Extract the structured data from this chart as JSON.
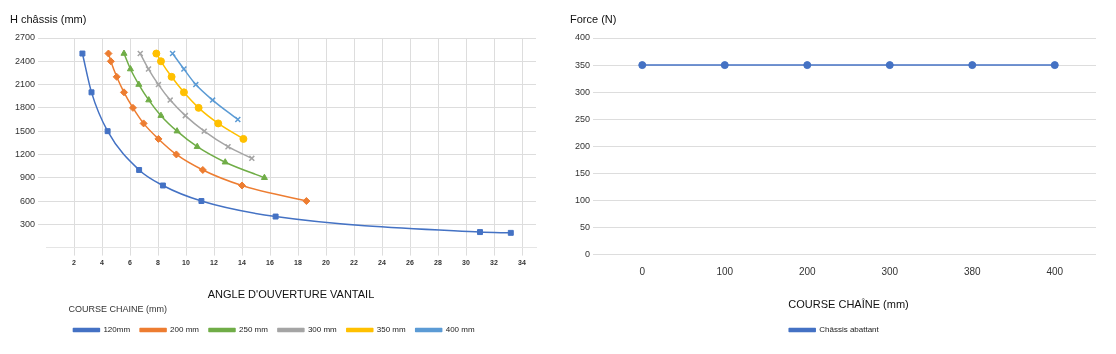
{
  "chart_data": [
    {
      "type": "line",
      "xlabel": "ANGLE D'OUVERTURE VANTAIL",
      "ylabel": "H châssis (mm)",
      "legend_title": "COURSE CHAÎNE (mm)",
      "legend": "bottom",
      "grid": true,
      "xlim": [
        0,
        35
      ],
      "xticks": [
        2,
        4,
        6,
        8,
        10,
        12,
        14,
        16,
        18,
        20,
        22,
        24,
        26,
        28,
        30,
        32,
        34
      ],
      "ylim": [
        0,
        2700
      ],
      "yticks": [
        300,
        600,
        900,
        1200,
        1500,
        1800,
        2100,
        2400,
        2700
      ],
      "series": [
        {
          "name": "120mm",
          "color": "#4472c4",
          "marker": "square",
          "x": [
            2.6,
            3.25,
            4.4,
            6.65,
            8.35,
            11.1,
            16.4,
            31.0,
            33.2
          ],
          "values": [
            2500,
            2000,
            1500,
            1000,
            800,
            600,
            400,
            200,
            190
          ]
        },
        {
          "name": "200 mm",
          "color": "#ed7d31",
          "marker": "diamond",
          "x": [
            4.46,
            4.63,
            5.05,
            5.57,
            6.21,
            6.97,
            8.03,
            9.31,
            11.2,
            14.0,
            18.6
          ],
          "values": [
            2500,
            2400,
            2200,
            2000,
            1800,
            1600,
            1400,
            1200,
            1000,
            800,
            600
          ]
        },
        {
          "name": "250 mm",
          "color": "#70ad47",
          "marker": "triangle",
          "x": [
            5.57,
            6.03,
            6.63,
            7.34,
            8.21,
            9.36,
            10.8,
            12.8,
            15.6
          ],
          "values": [
            2500,
            2300,
            2100,
            1900,
            1700,
            1500,
            1300,
            1100,
            900
          ]
        },
        {
          "name": "300 mm",
          "color": "#a5a5a5",
          "marker": "cross",
          "x": [
            6.73,
            7.32,
            8.03,
            8.87,
            9.95,
            11.3,
            13.0,
            14.7
          ],
          "values": [
            2500,
            2300,
            2100,
            1900,
            1700,
            1500,
            1300,
            1150
          ]
        },
        {
          "name": "350 mm",
          "color": "#ffc000",
          "marker": "circle",
          "x": [
            7.88,
            8.21,
            8.97,
            9.85,
            10.9,
            12.3,
            14.1
          ],
          "values": [
            2500,
            2400,
            2200,
            2000,
            1800,
            1600,
            1400
          ]
        },
        {
          "name": "400 mm",
          "color": "#5b9bd5",
          "marker": "cross",
          "x": [
            9.04,
            9.85,
            10.7,
            11.9,
            13.7
          ],
          "values": [
            2500,
            2300,
            2100,
            1900,
            1650
          ]
        }
      ]
    },
    {
      "type": "line",
      "xlabel": "COURSE CHAÎNE (mm)",
      "ylabel": "Force (N)",
      "legend": "bottom",
      "grid": "y",
      "marker": "circle",
      "categories": [
        "0",
        "100",
        "200",
        "300",
        "380",
        "400"
      ],
      "ylim": [
        0,
        400
      ],
      "yticks": [
        0,
        50,
        100,
        150,
        200,
        250,
        300,
        350,
        400
      ],
      "series": [
        {
          "name": "Châssis abattant",
          "color": "#4472c4",
          "values": [
            350,
            350,
            350,
            350,
            350,
            350
          ]
        }
      ]
    }
  ]
}
